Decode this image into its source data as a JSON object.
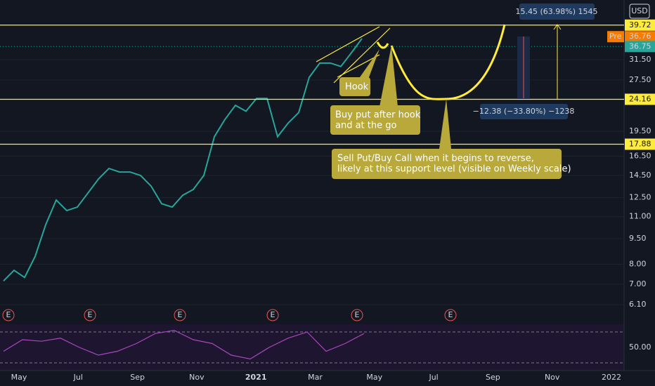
{
  "chart_data": {
    "type": "line",
    "log_scale": true,
    "currency": "USD",
    "ylim": [
      5.4,
      47
    ],
    "yticks": [
      {
        "value": 31.5,
        "label": "31.50"
      },
      {
        "value": 27.5,
        "label": "27.50"
      },
      {
        "value": 19.5,
        "label": "19.50"
      },
      {
        "value": 16.5,
        "label": "16.50"
      },
      {
        "value": 14.5,
        "label": "14.50"
      },
      {
        "value": 12.5,
        "label": "12.50"
      },
      {
        "value": 11,
        "label": "11.00"
      },
      {
        "value": 9.5,
        "label": "9.50"
      },
      {
        "value": 8,
        "label": "8.00"
      },
      {
        "value": 7,
        "label": "7.00"
      },
      {
        "value": 6.1,
        "label": "6.10"
      }
    ],
    "x_labels": [
      "May",
      "Jul",
      "Sep",
      "Nov",
      "2021",
      "Mar",
      "May",
      "Jul",
      "Sep",
      "Nov",
      "2022"
    ],
    "series": [
      {
        "color": "#26a69a",
        "values": [
          7.15,
          7.68,
          7.32,
          8.43,
          10.42,
          12.3,
          11.46,
          11.73,
          12.88,
          14.15,
          15.2,
          14.84,
          14.84,
          14.5,
          13.5,
          12.0,
          11.73,
          12.7,
          13.2,
          14.5,
          18.8,
          21.1,
          23.2,
          22.3,
          24.3,
          24.3,
          18.8,
          20.6,
          22.1,
          28.0,
          30.8,
          30.8,
          30.1,
          33.0,
          36.3
        ]
      }
    ],
    "levels": [
      {
        "value": 39.72,
        "color": "#ffeb3b"
      },
      {
        "value": 24.16,
        "color": "#ffeb3b"
      },
      {
        "value": 17.88,
        "color": "#ffeb3b"
      }
    ],
    "pre_market": {
      "label": "Pre",
      "value": 36.76,
      "color": "#f57c00"
    },
    "last_price": {
      "value": 36.75,
      "color": "#26a69a"
    },
    "earnings_marker": [
      "E",
      "E",
      "E",
      "E",
      "E",
      "E"
    ],
    "rsi": {
      "color": "#ab47bc",
      "ylim": [
        20,
        80
      ],
      "bands": [
        70,
        30
      ],
      "yticks": [
        {
          "value": 50,
          "label": "50.00"
        }
      ],
      "values": [
        45,
        60,
        58,
        62,
        50,
        40,
        45,
        55,
        68,
        72,
        60,
        55,
        40,
        35,
        50,
        62,
        70,
        45,
        55,
        68
      ]
    },
    "annotations": {
      "hook": "Hook",
      "buy_put": [
        "Buy put after hook",
        " and at the go"
      ],
      "sell_put": [
        "Sell Put/Buy Call when it begins to reverse,",
        "likely at this support level (visible on Weekly scale)"
      ],
      "measure_up": "15.45 (63.98%) 1545",
      "measure_down": "−12.38 (−33.80%) −1238"
    }
  }
}
